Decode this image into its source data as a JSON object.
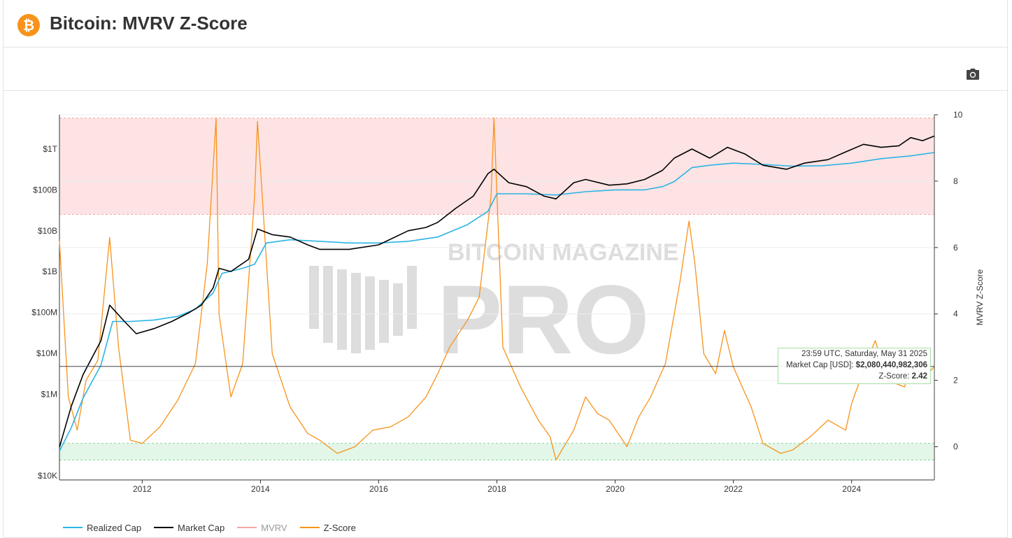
{
  "header": {
    "title": "Bitcoin: MVRV Z-Score",
    "logo_glyph": "₿"
  },
  "toolbar": {
    "camera_icon": "camera-icon"
  },
  "watermark": {
    "line1": "BITCOIN MAGAZINE",
    "line2": "PRO"
  },
  "tooltip": {
    "date": "23:59 UTC, Saturday, May 31 2025",
    "market_cap_label": "Market Cap [USD]:",
    "market_cap_value": "$2,080,440,982,306",
    "zscore_label": "Z-Score:",
    "zscore_value": "2.42"
  },
  "legend": [
    {
      "name": "Realized Cap",
      "color": "#2ab4e6"
    },
    {
      "name": "Market Cap",
      "color": "#000000"
    },
    {
      "name": "MVRV",
      "color": "#f4a6a6"
    },
    {
      "name": "Z-Score",
      "color": "#f7931a"
    }
  ],
  "chart_data": {
    "type": "line",
    "title": "Bitcoin: MVRV Z-Score",
    "xlabel": "",
    "ylabel_left": "",
    "ylabel_right": "MVRV Z-Score",
    "x_ticks": [
      "2012",
      "2014",
      "2016",
      "2018",
      "2020",
      "2022",
      "2024"
    ],
    "y_left_ticks": [
      "$10K",
      "$1M",
      "$10M",
      "$100M",
      "$1B",
      "$10B",
      "$100B",
      "$1T"
    ],
    "y_left_scale": "log",
    "y_right_ticks": [
      "0",
      "2",
      "4",
      "6",
      "8",
      "10"
    ],
    "y_right_range": [
      -1.0,
      10.0
    ],
    "bands": [
      {
        "name": "overvalued",
        "from": 7,
        "to": 9.9,
        "color": "#fde3e3"
      },
      {
        "name": "undervalued",
        "from": -0.4,
        "to": 0.1,
        "color": "#e3f7e8"
      }
    ],
    "series": [
      {
        "name": "Z-Score",
        "color": "#f7931a",
        "axis": "right",
        "x": [
          2010.6,
          2010.75,
          2010.9,
          2011.05,
          2011.25,
          2011.45,
          2011.6,
          2011.8,
          2012.0,
          2012.3,
          2012.6,
          2012.9,
          2013.1,
          2013.25,
          2013.3,
          2013.5,
          2013.7,
          2013.9,
          2013.95,
          2014.2,
          2014.5,
          2014.8,
          2015.0,
          2015.3,
          2015.6,
          2015.9,
          2016.2,
          2016.5,
          2016.8,
          2017.0,
          2017.2,
          2017.5,
          2017.7,
          2017.9,
          2017.95,
          2018.1,
          2018.4,
          2018.7,
          2018.9,
          2019.0,
          2019.3,
          2019.5,
          2019.7,
          2019.9,
          2020.2,
          2020.4,
          2020.6,
          2020.85,
          2021.0,
          2021.1,
          2021.25,
          2021.35,
          2021.5,
          2021.7,
          2021.85,
          2022.0,
          2022.3,
          2022.5,
          2022.8,
          2023.0,
          2023.3,
          2023.6,
          2023.9,
          2024.0,
          2024.2,
          2024.4,
          2024.6,
          2024.9,
          2025.0,
          2025.2,
          2025.4
        ],
        "y": [
          6.2,
          1.5,
          0.5,
          2.0,
          2.6,
          6.3,
          3.0,
          0.2,
          0.1,
          0.6,
          1.4,
          2.5,
          5.5,
          9.9,
          4.0,
          1.5,
          2.5,
          7.5,
          9.8,
          2.8,
          1.2,
          0.4,
          0.2,
          -0.2,
          0.0,
          0.5,
          0.6,
          0.9,
          1.5,
          2.2,
          3.0,
          3.8,
          4.5,
          7.5,
          9.9,
          3.0,
          1.8,
          0.8,
          0.3,
          -0.4,
          0.5,
          1.5,
          1.0,
          0.8,
          0.0,
          0.9,
          1.5,
          2.5,
          4.0,
          5.0,
          6.8,
          5.5,
          2.8,
          2.2,
          3.5,
          2.4,
          1.2,
          0.1,
          -0.2,
          -0.1,
          0.3,
          0.8,
          0.5,
          1.3,
          2.3,
          3.2,
          2.0,
          1.8,
          2.9,
          2.0,
          2.42
        ]
      },
      {
        "name": "Market Cap",
        "color": "#000000",
        "axis": "left",
        "x": [
          2010.6,
          2010.8,
          2011.0,
          2011.3,
          2011.45,
          2011.7,
          2011.9,
          2012.2,
          2012.5,
          2012.8,
          2013.0,
          2013.2,
          2013.3,
          2013.5,
          2013.8,
          2013.95,
          2014.2,
          2014.5,
          2014.8,
          2015.0,
          2015.5,
          2016.0,
          2016.5,
          2016.8,
          2017.0,
          2017.3,
          2017.6,
          2017.85,
          2017.95,
          2018.2,
          2018.5,
          2018.8,
          2019.0,
          2019.3,
          2019.5,
          2019.9,
          2020.2,
          2020.5,
          2020.8,
          2021.0,
          2021.3,
          2021.6,
          2021.9,
          2022.2,
          2022.5,
          2022.9,
          2023.2,
          2023.6,
          2023.9,
          2024.2,
          2024.5,
          2024.8,
          2025.0,
          2025.2,
          2025.4
        ],
        "y": [
          50000,
          500000,
          3000000,
          20000000.0,
          150000000.0,
          60000000.0,
          30000000.0,
          40000000.0,
          60000000.0,
          100000000.0,
          150000000.0,
          400000000.0,
          1200000000.0,
          1000000000.0,
          2000000000.0,
          11000000000.0,
          8000000000.0,
          7000000000.0,
          4500000000.0,
          3500000000.0,
          3500000000.0,
          4500000000.0,
          10000000000.0,
          12000000000.0,
          16000000000.0,
          35000000000.0,
          70000000000.0,
          250000000000.0,
          320000000000.0,
          150000000000.0,
          120000000000.0,
          70000000000.0,
          60000000000.0,
          150000000000.0,
          180000000000.0,
          130000000000.0,
          140000000000.0,
          180000000000.0,
          300000000000.0,
          600000000000.0,
          1000000000000.0,
          600000000000.0,
          1100000000000.0,
          750000000000.0,
          400000000000.0,
          320000000000.0,
          450000000000.0,
          550000000000.0,
          850000000000.0,
          1300000000000.0,
          1100000000000.0,
          1200000000000.0,
          1900000000000.0,
          1600000000000.0,
          2080000000000.0
        ]
      },
      {
        "name": "Realized Cap",
        "color": "#2ab4e6",
        "axis": "left",
        "x": [
          2010.6,
          2010.8,
          2011.0,
          2011.3,
          2011.5,
          2011.8,
          2012.2,
          2012.6,
          2012.9,
          2013.2,
          2013.35,
          2013.7,
          2013.9,
          2014.1,
          2014.5,
          2015.0,
          2015.5,
          2016.0,
          2016.5,
          2017.0,
          2017.5,
          2017.85,
          2018.0,
          2018.5,
          2019.0,
          2019.5,
          2020.0,
          2020.5,
          2020.8,
          2021.0,
          2021.3,
          2021.6,
          2022.0,
          2022.5,
          2023.0,
          2023.5,
          2024.0,
          2024.5,
          2025.0,
          2025.4
        ],
        "y": [
          40000,
          150000,
          800000,
          5000000.0,
          60000000.0,
          60000000.0,
          65000000.0,
          80000000.0,
          120000000.0,
          300000000.0,
          900000000.0,
          1200000000.0,
          1500000000.0,
          5000000000.0,
          6000000000.0,
          5500000000.0,
          5000000000.0,
          5000000000.0,
          5500000000.0,
          7000000000.0,
          14000000000.0,
          30000000000.0,
          80000000000.0,
          80000000000.0,
          75000000000.0,
          90000000000.0,
          100000000000.0,
          100000000000.0,
          120000000000.0,
          160000000000.0,
          350000000000.0,
          400000000000.0,
          450000000000.0,
          420000000000.0,
          380000000000.0,
          390000000000.0,
          450000000000.0,
          580000000000.0,
          680000000000.0,
          820000000000.0
        ]
      }
    ]
  }
}
